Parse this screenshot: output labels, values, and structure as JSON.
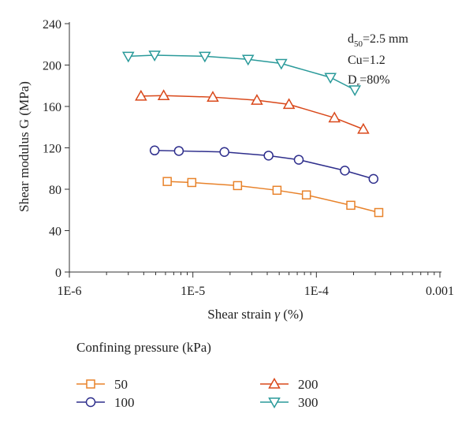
{
  "chart_data": {
    "type": "line",
    "xlabel_main": "Shear strain ",
    "xlabel_symbol": "γ",
    "xlabel_unit": " (%)",
    "ylabel": "Shear modulus G (MPa)",
    "xscale": "log",
    "xlim": [
      1e-06,
      0.001
    ],
    "ylim": [
      0,
      240
    ],
    "x_ticks": [
      {
        "value": 1e-06,
        "label": "1E-6"
      },
      {
        "value": 1e-05,
        "label": "1E-5"
      },
      {
        "value": 0.0001,
        "label": "1E-4"
      },
      {
        "value": 0.001,
        "label": "0.001"
      }
    ],
    "y_ticks": [
      0,
      40,
      80,
      120,
      160,
      200,
      240
    ],
    "annotation": {
      "line1_main": "d",
      "line1_sub": "50",
      "line1_rest": "=2.5 mm",
      "line2": "Cu=1.2",
      "line3_main": "D",
      "line3_sub": "r",
      "line3_rest": "=80%"
    },
    "legend_title": "Confining pressure (kPa)",
    "legend_placement": "bottom",
    "series": [
      {
        "name": "50",
        "marker": "square",
        "color": "#E8822A",
        "points": [
          [
            6.2e-06,
            87.5
          ],
          [
            9.8e-06,
            86.5
          ],
          [
            2.3e-05,
            83.5
          ],
          [
            4.8e-05,
            79
          ],
          [
            8.3e-05,
            74.5
          ],
          [
            0.00019,
            64.5
          ],
          [
            0.00032,
            57.5
          ]
        ]
      },
      {
        "name": "100",
        "marker": "circle",
        "color": "#2E2E8C",
        "points": [
          [
            4.9e-06,
            117.5
          ],
          [
            7.7e-06,
            117
          ],
          [
            1.8e-05,
            116
          ],
          [
            4.1e-05,
            112.5
          ],
          [
            7.2e-05,
            108.5
          ],
          [
            0.00017,
            98
          ],
          [
            0.00029,
            90
          ]
        ]
      },
      {
        "name": "200",
        "marker": "triangle-up",
        "color": "#D9481A",
        "points": [
          [
            3.8e-06,
            170
          ],
          [
            5.8e-06,
            170.5
          ],
          [
            1.45e-05,
            169
          ],
          [
            3.3e-05,
            166
          ],
          [
            6e-05,
            162
          ],
          [
            0.00014,
            149
          ],
          [
            0.00024,
            138
          ]
        ]
      },
      {
        "name": "300",
        "marker": "triangle-down",
        "color": "#2A9A9A",
        "points": [
          [
            3e-06,
            208.5
          ],
          [
            4.9e-06,
            209.5
          ],
          [
            1.25e-05,
            208.5
          ],
          [
            2.8e-05,
            205.5
          ],
          [
            5.2e-05,
            201.5
          ],
          [
            0.00013,
            188
          ],
          [
            0.000205,
            176
          ]
        ]
      }
    ]
  }
}
